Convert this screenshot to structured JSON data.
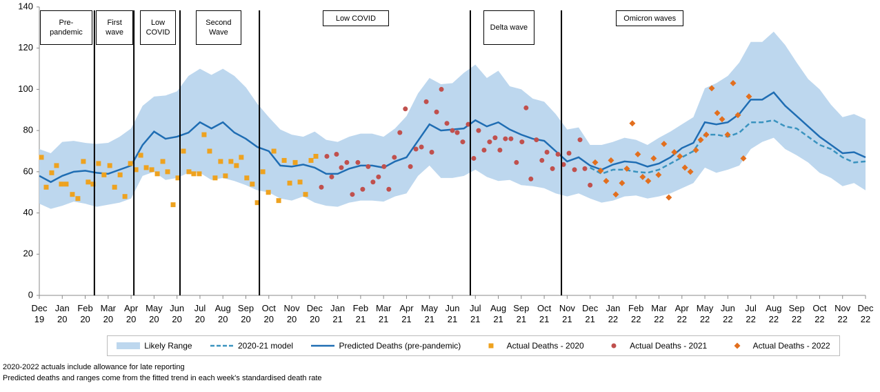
{
  "chart_data": {
    "type": "line",
    "ylim": [
      0,
      140
    ],
    "yticks": [
      0,
      20,
      40,
      60,
      80,
      100,
      120,
      140
    ],
    "xlim": [
      0,
      36
    ],
    "xticks": [
      {
        "value": 0,
        "label": "Dec 19"
      },
      {
        "value": 1,
        "label": "Jan 20"
      },
      {
        "value": 2,
        "label": "Feb 20"
      },
      {
        "value": 3,
        "label": "Mar 20"
      },
      {
        "value": 4,
        "label": "Apr 20"
      },
      {
        "value": 5,
        "label": "May 20"
      },
      {
        "value": 6,
        "label": "Jun 20"
      },
      {
        "value": 7,
        "label": "Jul 20"
      },
      {
        "value": 8,
        "label": "Aug 20"
      },
      {
        "value": 9,
        "label": "Sep 20"
      },
      {
        "value": 10,
        "label": "Oct 20"
      },
      {
        "value": 11,
        "label": "Nov 20"
      },
      {
        "value": 12,
        "label": "Dec 20"
      },
      {
        "value": 13,
        "label": "Jan 21"
      },
      {
        "value": 14,
        "label": "Feb 21"
      },
      {
        "value": 15,
        "label": "Mar 21"
      },
      {
        "value": 16,
        "label": "Apr 21"
      },
      {
        "value": 17,
        "label": "May 21"
      },
      {
        "value": 18,
        "label": "Jun 21"
      },
      {
        "value": 19,
        "label": "Jul 21"
      },
      {
        "value": 20,
        "label": "Aug 21"
      },
      {
        "value": 21,
        "label": "Sep 21"
      },
      {
        "value": 22,
        "label": "Oct 21"
      },
      {
        "value": 23,
        "label": "Nov 21"
      },
      {
        "value": 24,
        "label": "Dec 21"
      },
      {
        "value": 25,
        "label": "Jan 22"
      },
      {
        "value": 26,
        "label": "Feb 22"
      },
      {
        "value": 27,
        "label": "Mar 22"
      },
      {
        "value": 28,
        "label": "Apr 22"
      },
      {
        "value": 29,
        "label": "May 22"
      },
      {
        "value": 30,
        "label": "Jun 22"
      },
      {
        "value": 31,
        "label": "Jul 22"
      },
      {
        "value": 32,
        "label": "Aug 22"
      },
      {
        "value": 33,
        "label": "Sep 22"
      },
      {
        "value": 34,
        "label": "Oct 22"
      },
      {
        "value": 35,
        "label": "Nov 22"
      },
      {
        "value": 36,
        "label": "Dec 22"
      }
    ],
    "phase_lines": [
      2.4,
      4.12,
      6.13,
      9.59,
      18.78,
      22.75
    ],
    "annotations": [
      {
        "text": "Pre-pandemic",
        "x": 1.17
      },
      {
        "text": "First wave",
        "x": 3.28
      },
      {
        "text": "Low COVID",
        "x": 5.17
      },
      {
        "text": "Second Wave",
        "x": 7.81
      },
      {
        "text": "Low COVID",
        "x": 13.79
      },
      {
        "text": "Delta wave",
        "x": 20.46
      },
      {
        "text": "Omicron waves",
        "x": 26.6
      }
    ],
    "series": [
      {
        "name": "Likely Range",
        "type": "range",
        "color": "#bdd7ee",
        "x": [
          0,
          0.5,
          1,
          1.5,
          2,
          2.5,
          3,
          3.5,
          4,
          4.5,
          5,
          5.5,
          6,
          6.5,
          7,
          7.5,
          8,
          8.5,
          9,
          9.5,
          10,
          10.5,
          11,
          11.5,
          12,
          12.5,
          13,
          13.5,
          14,
          14.5,
          15,
          15.5,
          16,
          16.5,
          17,
          17.5,
          18,
          18.5,
          19,
          19.5,
          20,
          20.5,
          21,
          21.5,
          22,
          22.5,
          23,
          23.5,
          24,
          24.5,
          25,
          25.5,
          26,
          26.5,
          27,
          27.5,
          28,
          28.5,
          29,
          29.5,
          30,
          30.5,
          31,
          31.5,
          32,
          32.5,
          33,
          33.5,
          34,
          34.5,
          35,
          35.5,
          36
        ],
        "upper": [
          71,
          69,
          74.5,
          75,
          74,
          73.5,
          74,
          77,
          81,
          92,
          96.5,
          97,
          99,
          106.5,
          110,
          107,
          110,
          106.5,
          101,
          93,
          86.5,
          80.5,
          78,
          77,
          79.5,
          75.5,
          74.5,
          77,
          78.5,
          78.5,
          77,
          81,
          87,
          98,
          105.5,
          102.5,
          103,
          108,
          112,
          105.5,
          109,
          101.5,
          100,
          95.5,
          94,
          88,
          80.5,
          81.5,
          73,
          73,
          74.5,
          76.5,
          75.5,
          73,
          76.5,
          79.5,
          83,
          86.5,
          100.5,
          103,
          106.5,
          113,
          123,
          123,
          128,
          121.5,
          113,
          105,
          100,
          92.5,
          86.5,
          88,
          85.5
        ],
        "lower": [
          44.5,
          42,
          43.5,
          45.5,
          44.5,
          43,
          44,
          45,
          47,
          58,
          60,
          56,
          57,
          59.5,
          59.5,
          56,
          57,
          55.5,
          53.5,
          51,
          50,
          47,
          46,
          48,
          45,
          43.5,
          43,
          45,
          46,
          46,
          45.5,
          48,
          49.5,
          58,
          63,
          57,
          57,
          58,
          61,
          57.5,
          55.5,
          56,
          53.5,
          53,
          52,
          49.5,
          48,
          49.5,
          47,
          45,
          46,
          48,
          48.5,
          47,
          48,
          49.5,
          52,
          54.5,
          62,
          59.5,
          61,
          63,
          71,
          74.5,
          76.5,
          71,
          68,
          64.5,
          59.5,
          57,
          53,
          54.5,
          51
        ]
      },
      {
        "name": "2020-21 model",
        "type": "line",
        "dash": true,
        "color": "#3a93bf",
        "x": [
          24,
          24.5,
          25,
          25.5,
          26,
          26.5,
          27,
          27.5,
          28,
          28.5,
          29,
          29.5,
          30,
          30.5,
          31,
          31.5,
          32,
          32.5,
          33,
          33.5,
          34,
          34.5,
          35,
          35.5,
          36
        ],
        "values": [
          62,
          59,
          61,
          61,
          60,
          59.5,
          61,
          64,
          67,
          70,
          78,
          78,
          77,
          79,
          84,
          84,
          85,
          82,
          81,
          77,
          73,
          71,
          67,
          64.5,
          65
        ]
      },
      {
        "name": "Predicted Deaths (pre-pandemic)",
        "type": "line",
        "dash": false,
        "color": "#1f6db3",
        "x": [
          0,
          0.5,
          1,
          1.5,
          2,
          2.5,
          3,
          3.5,
          4,
          4.5,
          5,
          5.5,
          6,
          6.5,
          7,
          7.5,
          8,
          8.5,
          9,
          9.5,
          10,
          10.5,
          11,
          11.5,
          12,
          12.5,
          13,
          13.5,
          14,
          14.5,
          15,
          15.5,
          16,
          16.5,
          17,
          17.5,
          18,
          18.5,
          19,
          19.5,
          20,
          20.5,
          21,
          21.5,
          22,
          22.5,
          23,
          23.5,
          24,
          24.5,
          25,
          25.5,
          26,
          26.5,
          27,
          27.5,
          28,
          28.5,
          29,
          29.5,
          30,
          30.5,
          31,
          31.5,
          32,
          32.5,
          33,
          33.5,
          34,
          34.5,
          35,
          35.5,
          36
        ],
        "values": [
          58,
          55,
          58,
          60,
          60.5,
          59.5,
          59,
          61,
          63,
          73,
          79.5,
          76,
          77,
          79,
          84,
          81,
          84,
          79,
          76,
          72,
          70,
          63,
          62.5,
          63.5,
          62,
          59,
          59,
          61.5,
          63,
          63,
          62,
          65,
          67,
          75,
          83,
          80,
          80.5,
          81,
          85,
          82,
          84,
          80.5,
          78,
          76,
          75,
          70,
          65,
          67,
          63,
          61,
          63.5,
          65,
          64.5,
          62.5,
          64,
          67,
          71.5,
          74,
          84,
          83,
          84,
          88,
          95,
          95,
          98.5,
          92,
          87,
          82,
          77,
          73,
          69,
          69.5,
          67
        ]
      },
      {
        "name": "Actual Deaths - 2020",
        "type": "scatter",
        "marker": "square",
        "color": "#eea21f",
        "x": [
          0.09,
          0.3,
          0.54,
          0.75,
          0.96,
          1.17,
          1.44,
          1.68,
          1.92,
          2.13,
          2.34,
          2.58,
          2.82,
          3.07,
          3.28,
          3.52,
          3.73,
          3.97,
          4.21,
          4.42,
          4.66,
          4.9,
          5.14,
          5.38,
          5.59,
          5.83,
          6.04,
          6.28,
          6.52,
          6.73,
          6.97,
          7.18,
          7.42,
          7.66,
          7.9,
          8.11,
          8.35,
          8.59,
          8.8,
          9.04,
          9.28,
          9.5,
          9.74,
          9.98,
          10.22,
          10.43,
          10.67,
          10.91,
          11.15,
          11.36,
          11.6,
          11.84,
          12.05
        ],
        "values": [
          67,
          52.5,
          59.5,
          63,
          54,
          54,
          49,
          47,
          65,
          55,
          54,
          64,
          58.5,
          63,
          52.5,
          58.5,
          48,
          64,
          61,
          68,
          62,
          61,
          59,
          65,
          60,
          44,
          57,
          70,
          60,
          59,
          59,
          78,
          70,
          57,
          65,
          58,
          65,
          63,
          67,
          57,
          54,
          45,
          60,
          50,
          70,
          46,
          65.5,
          54.5,
          64.5,
          55,
          49,
          65.5,
          67.5
        ]
      },
      {
        "name": "Actual Deaths - 2021",
        "type": "scatter",
        "marker": "circle",
        "color": "#c0504d",
        "x": [
          12.29,
          12.53,
          12.74,
          12.95,
          13.16,
          13.4,
          13.64,
          13.88,
          14.09,
          14.33,
          14.54,
          14.78,
          15.02,
          15.23,
          15.47,
          15.71,
          15.95,
          16.17,
          16.41,
          16.65,
          16.86,
          17.1,
          17.31,
          17.52,
          17.76,
          18.0,
          18.21,
          18.45,
          18.69,
          18.93,
          19.14,
          19.38,
          19.62,
          19.86,
          20.07,
          20.31,
          20.55,
          20.79,
          21.03,
          21.21,
          21.42,
          21.66,
          21.9,
          22.12,
          22.36,
          22.6,
          22.84,
          23.08,
          23.32,
          23.56,
          23.77,
          24.0
        ],
        "values": [
          52.5,
          67.5,
          57.5,
          68.5,
          62,
          64.5,
          49,
          64.5,
          51.5,
          62.5,
          55,
          57.5,
          62.5,
          51.5,
          67,
          79,
          90.5,
          62.5,
          71,
          72,
          94,
          69.5,
          89,
          100,
          83.5,
          80,
          79,
          74.5,
          83,
          66.5,
          80,
          70.5,
          74.5,
          76.5,
          70.5,
          76,
          76,
          64.5,
          74.5,
          91,
          56.5,
          75.5,
          65.5,
          69.5,
          61.5,
          68.5,
          63.5,
          69,
          61,
          75.5,
          61.5,
          53.5
        ]
      },
      {
        "name": "Actual Deaths - 2022",
        "type": "scatter",
        "marker": "diamond",
        "color": "#e26f1e",
        "x": [
          24.22,
          24.46,
          24.7,
          24.91,
          25.12,
          25.39,
          25.6,
          25.84,
          26.08,
          26.29,
          26.53,
          26.77,
          26.98,
          27.22,
          27.43,
          27.67,
          27.91,
          28.13,
          28.37,
          28.61,
          28.82,
          29.06,
          29.3,
          29.54,
          29.75,
          29.99,
          30.23,
          30.44,
          30.68,
          30.92
        ],
        "values": [
          64.5,
          60.5,
          55.5,
          65.5,
          49,
          54.5,
          61.5,
          83.5,
          68.5,
          57.5,
          55.5,
          66.5,
          58.5,
          73.5,
          47.5,
          69.5,
          67.5,
          62,
          60,
          70.5,
          75.5,
          78,
          100.5,
          88.5,
          85.5,
          78,
          103,
          87.5,
          66.5,
          96.5
        ]
      }
    ],
    "notes": [
      "2020-2022 actuals include allowance for late reporting",
      "Predicted deaths and ranges come from the fitted trend in each week's standardised death rate"
    ]
  }
}
